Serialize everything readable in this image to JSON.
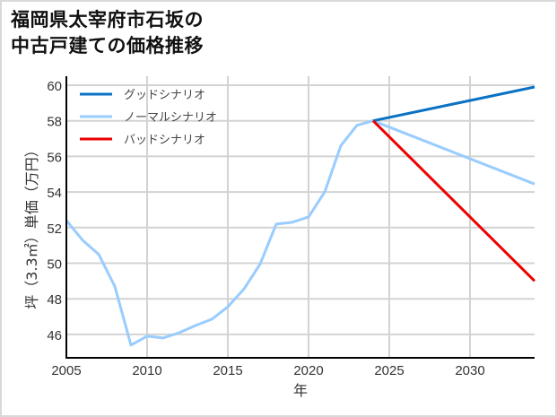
{
  "title": {
    "line1": "福岡県太宰府市石坂の",
    "line2": "中古戸建ての価格推移"
  },
  "chart_data": {
    "type": "line",
    "title": "福岡県太宰府市石坂の中古戸建ての価格推移",
    "xlabel": "年",
    "ylabel": "坪（3.3㎡）単価（万円）",
    "xlim": [
      2005,
      2034
    ],
    "ylim": [
      44.7,
      60.3
    ],
    "xticks": [
      2005,
      2010,
      2015,
      2020,
      2025,
      2030
    ],
    "yticks": [
      46,
      48,
      50,
      52,
      54,
      56,
      58,
      60
    ],
    "grid": true,
    "legend_position": "upper left",
    "series": [
      {
        "name": "グッドシナリオ",
        "color": "#0a72c4",
        "x": [
          2024,
          2034
        ],
        "values": [
          58.0,
          59.9
        ]
      },
      {
        "name": "ノーマルシナリオ",
        "color": "#99ccff",
        "x": [
          2005,
          2006,
          2007,
          2008,
          2009,
          2010,
          2011,
          2012,
          2013,
          2014,
          2015,
          2016,
          2017,
          2018,
          2019,
          2020,
          2021,
          2022,
          2023,
          2024,
          2034
        ],
        "values": [
          52.4,
          51.3,
          50.5,
          48.7,
          45.4,
          45.9,
          45.8,
          46.1,
          46.5,
          46.85,
          47.55,
          48.55,
          49.95,
          52.2,
          52.3,
          52.6,
          54.0,
          56.6,
          57.75,
          58.0,
          54.45
        ]
      },
      {
        "name": "バッドシナリオ",
        "color": "#ee0000",
        "x": [
          2024,
          2034
        ],
        "values": [
          58.0,
          49.0
        ]
      }
    ]
  }
}
